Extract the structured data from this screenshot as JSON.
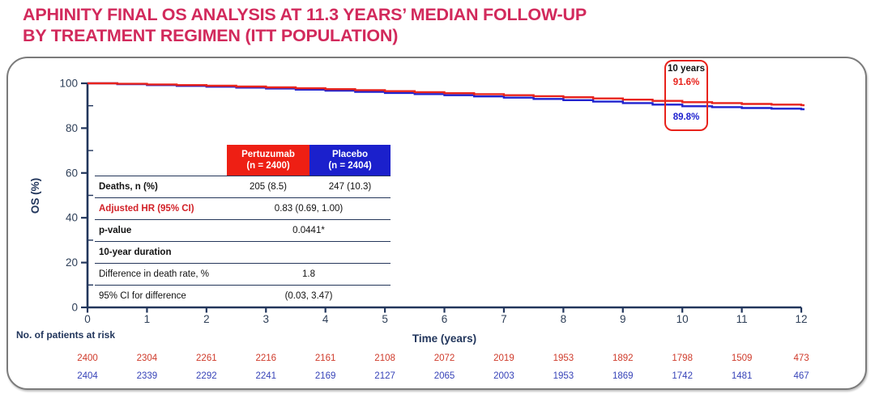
{
  "title": {
    "line1": "APHINITY FINAL OS ANALYSIS AT 11.3 YEARS’ MEDIAN FOLLOW-UP",
    "line2": "BY TREATMENT REGIMEN (ITT POPULATION)"
  },
  "colors": {
    "title_pink": "#d22a5c",
    "pertuzumab_red": "#e8231c",
    "placebo_blue": "#1f22cf",
    "axis_navy": "#22365c",
    "at_risk_red": "#cf3a2a",
    "at_risk_blue": "#3743b8"
  },
  "annotation": {
    "title": "10 years",
    "pertuzumab_value": "91.6%",
    "placebo_value": "89.8%"
  },
  "stats_table": {
    "headers": [
      {
        "label": "Pertuzumab",
        "sub": "(n = 2400)",
        "bg": "#ee1f14"
      },
      {
        "label": "Placebo",
        "sub": "(n = 2404)",
        "bg": "#1b20cc"
      }
    ],
    "rows": [
      {
        "label": "Deaths, n (%)",
        "bold": true,
        "label_color": "#111111",
        "values": [
          "205 (8.5)",
          "247 (10.3)"
        ]
      },
      {
        "label": "Adjusted HR (95% CI)",
        "bold": true,
        "label_color": "#d22027",
        "span": "0.83 (0.69, 1.00)"
      },
      {
        "label": "p-value",
        "bold": true,
        "label_color": "#111111",
        "span": "0.0441*"
      },
      {
        "label": "10-year duration",
        "bold": true,
        "label_color": "#111111",
        "span": ""
      },
      {
        "label": "Difference in death rate, %",
        "bold": false,
        "label_color": "#111111",
        "span": "1.8"
      },
      {
        "label": "95% CI for difference",
        "bold": false,
        "label_color": "#111111",
        "span": "(0.03, 3.47)"
      }
    ]
  },
  "chart_data": {
    "type": "line",
    "subtype": "kaplan-meier-step",
    "title": "",
    "xlabel": "Time (years)",
    "ylabel": "OS (%)",
    "xlim": [
      0,
      12
    ],
    "ylim": [
      0,
      100
    ],
    "x_ticks": [
      0,
      1,
      2,
      3,
      4,
      5,
      6,
      7,
      8,
      9,
      10,
      11,
      12
    ],
    "y_ticks": [
      0,
      20,
      40,
      60,
      80,
      100
    ],
    "y_minor_ticks": [
      10,
      30,
      50,
      70,
      90
    ],
    "grid": false,
    "legend_position": "none",
    "series": [
      {
        "name": "Pertuzumab",
        "color": "#e8231c",
        "points": [
          [
            0,
            100
          ],
          [
            0.5,
            99.8
          ],
          [
            1,
            99.5
          ],
          [
            1.5,
            99.2
          ],
          [
            2,
            98.9
          ],
          [
            2.5,
            98.55
          ],
          [
            3,
            98.2
          ],
          [
            3.5,
            97.8
          ],
          [
            4,
            97.4
          ],
          [
            4.5,
            96.95
          ],
          [
            5,
            96.5
          ],
          [
            5.5,
            96.05
          ],
          [
            6,
            95.6
          ],
          [
            6.5,
            95.15
          ],
          [
            7,
            94.7
          ],
          [
            7.5,
            94.25
          ],
          [
            8,
            93.8
          ],
          [
            8.5,
            93.25
          ],
          [
            9,
            92.7
          ],
          [
            9.5,
            92.15
          ],
          [
            10,
            91.6
          ],
          [
            10.5,
            91.2
          ],
          [
            11,
            90.8
          ],
          [
            11.5,
            90.5
          ],
          [
            12,
            90.2
          ]
        ],
        "value_at_10_years": "91.6%"
      },
      {
        "name": "Placebo",
        "color": "#1f22cf",
        "points": [
          [
            0,
            100
          ],
          [
            0.5,
            99.6
          ],
          [
            1,
            99.2
          ],
          [
            1.5,
            98.85
          ],
          [
            2,
            98.5
          ],
          [
            2.5,
            98.1
          ],
          [
            3,
            97.7
          ],
          [
            3.5,
            97.2
          ],
          [
            4,
            96.7
          ],
          [
            4.5,
            96.2
          ],
          [
            5,
            95.7
          ],
          [
            5.5,
            95.2
          ],
          [
            6,
            94.7
          ],
          [
            6.5,
            94.15
          ],
          [
            7,
            93.6
          ],
          [
            7.5,
            93.05
          ],
          [
            8,
            92.5
          ],
          [
            8.5,
            91.85
          ],
          [
            9,
            91.2
          ],
          [
            9.5,
            90.5
          ],
          [
            10,
            89.8
          ],
          [
            10.5,
            89.4
          ],
          [
            11,
            89.0
          ],
          [
            11.5,
            88.7
          ],
          [
            12,
            88.4
          ]
        ],
        "value_at_10_years": "89.8%"
      }
    ],
    "at_risk": {
      "label": "No. of patients at risk",
      "rows": [
        {
          "name": "Pertuzumab",
          "color": "#cf3a2a",
          "values": [
            2400,
            2304,
            2261,
            2216,
            2161,
            2108,
            2072,
            2019,
            1953,
            1892,
            1798,
            1509,
            473
          ]
        },
        {
          "name": "Placebo",
          "color": "#3743b8",
          "values": [
            2404,
            2339,
            2292,
            2241,
            2169,
            2127,
            2065,
            2003,
            1953,
            1869,
            1742,
            1481,
            467
          ]
        }
      ]
    }
  }
}
